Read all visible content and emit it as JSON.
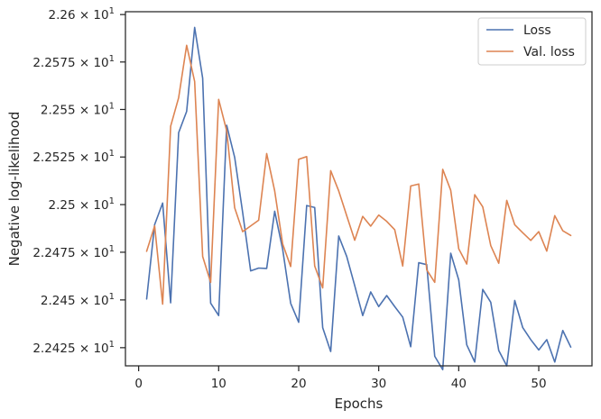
{
  "chart_data": {
    "type": "line",
    "xlabel": "Epochs",
    "ylabel": "Negative log-likelihood",
    "xlim": [
      -1.65,
      56.65
    ],
    "ylim": [
      22.4155,
      22.6015
    ],
    "yscale": "log",
    "x_ticks": [
      0,
      10,
      20,
      30,
      40,
      50
    ],
    "y_ticks": [
      {
        "value": 22.425,
        "label": "2.2425 × 10^1",
        "mantissa": "2.2425",
        "base": "10",
        "exp": "1"
      },
      {
        "value": 22.45,
        "label": "2.245 × 10^1",
        "mantissa": "2.245",
        "base": "10",
        "exp": "1"
      },
      {
        "value": 22.475,
        "label": "2.2475 × 10^1",
        "mantissa": "2.2475",
        "base": "10",
        "exp": "1"
      },
      {
        "value": 22.5,
        "label": "2.25 × 10^1",
        "mantissa": "2.25",
        "base": "10",
        "exp": "1"
      },
      {
        "value": 22.525,
        "label": "2.2525 × 10^1",
        "mantissa": "2.2525",
        "base": "10",
        "exp": "1"
      },
      {
        "value": 22.55,
        "label": "2.255 × 10^1",
        "mantissa": "2.255",
        "base": "10",
        "exp": "1"
      },
      {
        "value": 22.575,
        "label": "2.2575 × 10^1",
        "mantissa": "2.2575",
        "base": "10",
        "exp": "1"
      },
      {
        "value": 22.6,
        "label": "2.26 × 10^1",
        "mantissa": "2.26",
        "base": "10",
        "exp": "1"
      }
    ],
    "grid": false,
    "legend_position": "top-right",
    "x": [
      1,
      2,
      3,
      4,
      5,
      6,
      7,
      8,
      9,
      10,
      11,
      12,
      13,
      14,
      15,
      16,
      17,
      18,
      19,
      20,
      21,
      22,
      23,
      24,
      25,
      26,
      27,
      28,
      29,
      30,
      31,
      32,
      33,
      34,
      35,
      36,
      37,
      38,
      39,
      40,
      41,
      42,
      43,
      44,
      45,
      46,
      47,
      48,
      49,
      50,
      51,
      52,
      53,
      54
    ],
    "series": [
      {
        "name": "Loss",
        "color": "#4c72b0",
        "values": [
          22.4505,
          22.4895,
          22.5008,
          22.4485,
          22.5378,
          22.549,
          22.5932,
          22.5665,
          22.4483,
          22.4418,
          22.5417,
          22.5248,
          22.4958,
          22.4652,
          22.4667,
          22.4665,
          22.4965,
          22.4765,
          22.4482,
          22.4383,
          22.4995,
          22.4985,
          22.4355,
          22.423,
          22.4835,
          22.4728,
          22.4575,
          22.4418,
          22.4542,
          22.4465,
          22.4523,
          22.4465,
          22.441,
          22.4255,
          22.4695,
          22.4685,
          22.4205,
          22.4135,
          22.4745,
          22.4605,
          22.4265,
          22.4175,
          22.4555,
          22.4488,
          22.4235,
          22.4155,
          22.4497,
          22.4355,
          22.4292,
          22.4238,
          22.4292,
          22.4175,
          22.434,
          22.4253
        ]
      },
      {
        "name": "Val. loss",
        "color": "#dd8452",
        "values": [
          22.4755,
          22.4888,
          22.4478,
          22.5412,
          22.5562,
          22.5838,
          22.5647,
          22.4728,
          22.4592,
          22.5553,
          22.5388,
          22.4983,
          22.4858,
          22.4888,
          22.4918,
          22.5268,
          22.5072,
          22.4793,
          22.4675,
          22.5238,
          22.5252,
          22.4678,
          22.4563,
          22.5178,
          22.5072,
          22.4942,
          22.4813,
          22.4938,
          22.4887,
          22.4945,
          22.4912,
          22.4868,
          22.4678,
          22.5098,
          22.5108,
          22.4658,
          22.4592,
          22.5185,
          22.5075,
          22.4768,
          22.4688,
          22.5052,
          22.4988,
          22.4785,
          22.4692,
          22.5022,
          22.4894,
          22.4852,
          22.4812,
          22.4858,
          22.4756,
          22.4942,
          22.4863,
          22.4838
        ]
      }
    ]
  }
}
